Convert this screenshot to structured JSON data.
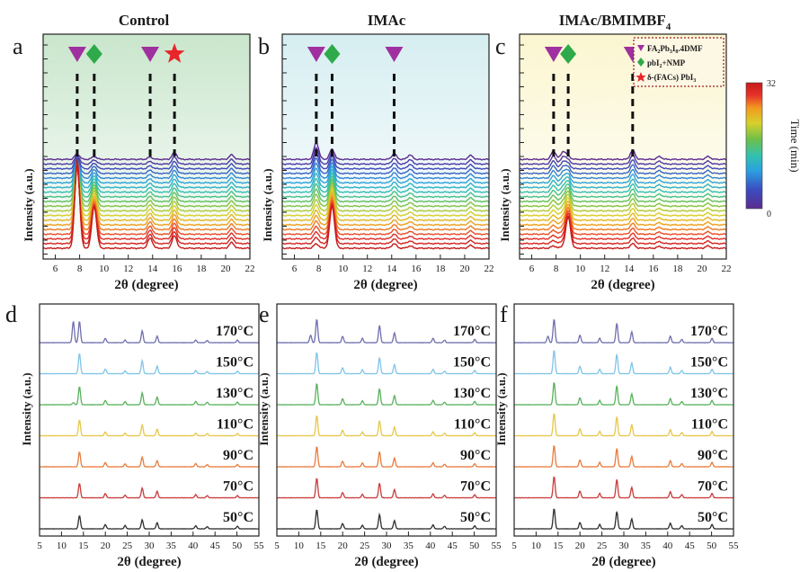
{
  "figure": {
    "colors": {
      "control_bg": "#d3ead6",
      "imac_bg": "#e2f1f3",
      "bmim_bg": "#fbf8dd",
      "triangle": "#a0309f",
      "diamond": "#2faa4a",
      "star": "#e8262a",
      "legend_border": "#9b1b1b",
      "colorbar": [
        "#5b2c8f",
        "#3b4cc0",
        "#2ba0e0",
        "#32c0b0",
        "#6cc04a",
        "#d8d02a",
        "#f29a20",
        "#e8322a",
        "#c51b1b"
      ],
      "temp_lines": [
        "#2e2e2e",
        "#c93a3a",
        "#e87b3b",
        "#e7c64a",
        "#58b25b",
        "#7fc4e8",
        "#6f6fae"
      ]
    },
    "colorbar": {
      "label": "Time (min)",
      "max_label": "32",
      "min_label": "0"
    },
    "legend": {
      "items": [
        {
          "icon": "triangle",
          "text": "FA2Pb3I8.4DMF"
        },
        {
          "icon": "diamond",
          "text": "pbI2+NMP"
        },
        {
          "icon": "star",
          "text": "δ-(FACs) PbI3"
        }
      ]
    },
    "temperature_labels": [
      "170°C",
      "150°C",
      "130°C",
      "110°C",
      "90°C",
      "70°C",
      "50°C"
    ]
  },
  "chart_data": [
    {
      "panel": "a",
      "type": "line",
      "title": "Control",
      "xlabel": "2θ (degree)",
      "ylabel": "Intensity (a.u.)",
      "xlim": [
        5,
        22
      ],
      "xticks": [
        6,
        8,
        10,
        12,
        14,
        16,
        18,
        20,
        22
      ],
      "series_count": 20,
      "series_variable": "time (min)",
      "time_range": [
        0,
        32
      ],
      "peaks": [
        {
          "x": 7.8,
          "height_first": 1.6,
          "height_last": 0.1,
          "marker": "triangle"
        },
        {
          "x": 9.2,
          "height_first": 0.75,
          "height_last": 0.05,
          "marker": "diamond"
        },
        {
          "x": 13.8,
          "height_first": 0.18,
          "height_last": 0.04,
          "marker": "triangle"
        },
        {
          "x": 15.8,
          "height_first": 0.22,
          "height_last": 0.12,
          "marker": "star"
        },
        {
          "x": 20.5,
          "height_first": 0.1,
          "height_last": 0.08,
          "marker": ""
        }
      ]
    },
    {
      "panel": "b",
      "type": "line",
      "title": "IMAc",
      "xlabel": "2θ (degree)",
      "ylabel": "Intensity (a.u.)",
      "xlim": [
        5,
        22
      ],
      "xticks": [
        6,
        8,
        10,
        12,
        14,
        16,
        18,
        20,
        22
      ],
      "series_count": 20,
      "series_variable": "time (min)",
      "time_range": [
        0,
        32
      ],
      "peaks": [
        {
          "x": 7.8,
          "height_first": 0.08,
          "height_last": 0.3,
          "marker": "triangle"
        },
        {
          "x": 9.1,
          "height_first": 0.75,
          "height_last": 0.18,
          "marker": "diamond"
        },
        {
          "x": 14.2,
          "height_first": 0.08,
          "height_last": 0.1,
          "marker": "triangle"
        },
        {
          "x": 15.5,
          "height_first": 0.04,
          "height_last": 0.08,
          "marker": ""
        },
        {
          "x": 20.5,
          "height_first": 0.05,
          "height_last": 0.07,
          "marker": ""
        }
      ]
    },
    {
      "panel": "c",
      "type": "line",
      "title": "IMAc/BMIMBF4",
      "xlabel": "2θ (degree)",
      "ylabel": "Intensity (a.u.)",
      "xlim": [
        5,
        22
      ],
      "xticks": [
        6,
        8,
        10,
        12,
        14,
        16,
        18,
        20,
        22
      ],
      "series_count": 20,
      "series_variable": "time (min)",
      "time_range": [
        0,
        32
      ],
      "peaks": [
        {
          "x": 7.8,
          "height_first": 0.04,
          "height_last": 0.15,
          "marker": "triangle"
        },
        {
          "x": 8.6,
          "height_first": 0.03,
          "height_last": 0.14,
          "marker": ""
        },
        {
          "x": 9.0,
          "height_first": 0.55,
          "height_last": 0.05,
          "marker": "diamond"
        },
        {
          "x": 14.3,
          "height_first": 0.08,
          "height_last": 0.16,
          "marker": "triangle"
        },
        {
          "x": 16.5,
          "height_first": 0.03,
          "height_last": 0.05,
          "marker": ""
        },
        {
          "x": 20.5,
          "height_first": 0.04,
          "height_last": 0.05,
          "marker": ""
        }
      ]
    },
    {
      "panel": "d",
      "type": "line",
      "title": "",
      "xlabel": "2θ (degree)",
      "ylabel": "Intensity (a.u.)",
      "xlim": [
        5,
        55
      ],
      "xticks": [
        5,
        10,
        15,
        20,
        25,
        30,
        35,
        40,
        45,
        50,
        55
      ],
      "series": [
        {
          "name": "170°C",
          "peaks": [
            [
              12.7,
              1.0
            ],
            [
              14.1,
              1.0
            ],
            [
              20.0,
              0.2
            ],
            [
              24.5,
              0.12
            ],
            [
              28.4,
              0.55
            ],
            [
              31.8,
              0.3
            ],
            [
              40.6,
              0.12
            ],
            [
              43.2,
              0.1
            ],
            [
              50.1,
              0.12
            ]
          ]
        },
        {
          "name": "150°C",
          "peaks": [
            [
              14.1,
              0.95
            ],
            [
              20.0,
              0.22
            ],
            [
              24.5,
              0.13
            ],
            [
              28.4,
              0.6
            ],
            [
              31.8,
              0.35
            ],
            [
              40.6,
              0.15
            ],
            [
              43.2,
              0.1
            ],
            [
              50.1,
              0.12
            ]
          ]
        },
        {
          "name": "130°C",
          "peaks": [
            [
              12.7,
              0.1
            ],
            [
              14.1,
              0.85
            ],
            [
              20.0,
              0.2
            ],
            [
              24.5,
              0.14
            ],
            [
              28.4,
              0.55
            ],
            [
              31.8,
              0.35
            ],
            [
              40.6,
              0.15
            ],
            [
              43.2,
              0.12
            ],
            [
              50.1,
              0.12
            ]
          ]
        },
        {
          "name": "110°C",
          "peaks": [
            [
              14.1,
              0.75
            ],
            [
              20.0,
              0.18
            ],
            [
              24.5,
              0.12
            ],
            [
              28.4,
              0.5
            ],
            [
              31.8,
              0.3
            ],
            [
              40.6,
              0.12
            ],
            [
              43.2,
              0.1
            ],
            [
              50.1,
              0.1
            ]
          ]
        },
        {
          "name": "90°C",
          "peaks": [
            [
              14.1,
              0.7
            ],
            [
              20.0,
              0.2
            ],
            [
              24.5,
              0.13
            ],
            [
              28.4,
              0.45
            ],
            [
              31.8,
              0.28
            ],
            [
              40.6,
              0.15
            ],
            [
              43.2,
              0.1
            ],
            [
              50.1,
              0.1
            ]
          ]
        },
        {
          "name": "70°C",
          "peaks": [
            [
              14.1,
              0.68
            ],
            [
              20.0,
              0.2
            ],
            [
              24.5,
              0.12
            ],
            [
              28.4,
              0.45
            ],
            [
              31.8,
              0.3
            ],
            [
              40.6,
              0.15
            ],
            [
              43.2,
              0.1
            ],
            [
              50.1,
              0.1
            ]
          ]
        },
        {
          "name": "50°C",
          "peaks": [
            [
              14.1,
              0.62
            ],
            [
              20.0,
              0.2
            ],
            [
              24.5,
              0.15
            ],
            [
              28.4,
              0.42
            ],
            [
              31.8,
              0.28
            ],
            [
              40.6,
              0.14
            ],
            [
              43.2,
              0.1
            ],
            [
              50.1,
              0.12
            ]
          ]
        }
      ]
    },
    {
      "panel": "e",
      "type": "line",
      "title": "",
      "xlabel": "2θ (degree)",
      "ylabel": "Intensity (a.u.)",
      "xlim": [
        5,
        55
      ],
      "xticks": [
        5,
        10,
        15,
        20,
        25,
        30,
        35,
        40,
        45,
        50,
        55
      ],
      "series": [
        {
          "name": "170°C",
          "peaks": [
            [
              12.7,
              0.35
            ],
            [
              14.1,
              1.1
            ],
            [
              20.0,
              0.3
            ],
            [
              24.5,
              0.2
            ],
            [
              28.4,
              0.8
            ],
            [
              31.8,
              0.45
            ],
            [
              40.6,
              0.2
            ],
            [
              43.2,
              0.12
            ],
            [
              50.1,
              0.15
            ]
          ]
        },
        {
          "name": "150°C",
          "peaks": [
            [
              14.1,
              1.0
            ],
            [
              20.0,
              0.28
            ],
            [
              24.5,
              0.18
            ],
            [
              28.4,
              0.75
            ],
            [
              31.8,
              0.42
            ],
            [
              40.6,
              0.2
            ],
            [
              43.2,
              0.12
            ],
            [
              50.1,
              0.15
            ]
          ]
        },
        {
          "name": "130°C",
          "peaks": [
            [
              14.1,
              1.0
            ],
            [
              20.0,
              0.28
            ],
            [
              24.5,
              0.18
            ],
            [
              28.4,
              0.75
            ],
            [
              31.8,
              0.42
            ],
            [
              40.6,
              0.2
            ],
            [
              43.2,
              0.12
            ],
            [
              50.1,
              0.15
            ]
          ]
        },
        {
          "name": "110°C",
          "peaks": [
            [
              14.1,
              0.95
            ],
            [
              20.0,
              0.26
            ],
            [
              24.5,
              0.17
            ],
            [
              28.4,
              0.7
            ],
            [
              31.8,
              0.4
            ],
            [
              40.6,
              0.18
            ],
            [
              43.2,
              0.12
            ],
            [
              50.1,
              0.14
            ]
          ]
        },
        {
          "name": "90°C",
          "peaks": [
            [
              14.1,
              0.95
            ],
            [
              20.0,
              0.26
            ],
            [
              24.5,
              0.17
            ],
            [
              28.4,
              0.7
            ],
            [
              31.8,
              0.4
            ],
            [
              40.6,
              0.18
            ],
            [
              43.2,
              0.12
            ],
            [
              50.1,
              0.14
            ]
          ]
        },
        {
          "name": "70°C",
          "peaks": [
            [
              14.1,
              0.92
            ],
            [
              20.0,
              0.25
            ],
            [
              24.5,
              0.16
            ],
            [
              28.4,
              0.68
            ],
            [
              31.8,
              0.38
            ],
            [
              40.6,
              0.18
            ],
            [
              43.2,
              0.12
            ],
            [
              50.1,
              0.14
            ]
          ]
        },
        {
          "name": "50°C",
          "peaks": [
            [
              14.1,
              0.9
            ],
            [
              20.0,
              0.25
            ],
            [
              24.5,
              0.16
            ],
            [
              28.4,
              0.66
            ],
            [
              31.8,
              0.38
            ],
            [
              40.6,
              0.18
            ],
            [
              43.2,
              0.12
            ],
            [
              50.1,
              0.14
            ]
          ]
        }
      ]
    },
    {
      "panel": "f",
      "type": "line",
      "title": "",
      "xlabel": "2θ (degree)",
      "ylabel": "Intensity (a.u.)",
      "xlim": [
        5,
        55
      ],
      "xticks": [
        5,
        10,
        15,
        20,
        25,
        30,
        35,
        40,
        45,
        50,
        55
      ],
      "series": [
        {
          "name": "170°C",
          "peaks": [
            [
              12.7,
              0.3
            ],
            [
              14.1,
              1.1
            ],
            [
              20.0,
              0.35
            ],
            [
              24.5,
              0.2
            ],
            [
              28.4,
              0.9
            ],
            [
              31.8,
              0.5
            ],
            [
              40.6,
              0.3
            ],
            [
              43.2,
              0.15
            ],
            [
              50.1,
              0.2
            ]
          ]
        },
        {
          "name": "150°C",
          "peaks": [
            [
              14.1,
              1.1
            ],
            [
              20.0,
              0.35
            ],
            [
              24.5,
              0.2
            ],
            [
              28.4,
              0.9
            ],
            [
              31.8,
              0.5
            ],
            [
              40.6,
              0.3
            ],
            [
              43.2,
              0.15
            ],
            [
              50.1,
              0.2
            ]
          ]
        },
        {
          "name": "130°C",
          "peaks": [
            [
              14.1,
              1.05
            ],
            [
              20.0,
              0.33
            ],
            [
              24.5,
              0.2
            ],
            [
              28.4,
              0.88
            ],
            [
              31.8,
              0.5
            ],
            [
              40.6,
              0.28
            ],
            [
              43.2,
              0.15
            ],
            [
              50.1,
              0.2
            ]
          ]
        },
        {
          "name": "110°C",
          "peaks": [
            [
              14.1,
              1.05
            ],
            [
              20.0,
              0.33
            ],
            [
              24.5,
              0.2
            ],
            [
              28.4,
              0.88
            ],
            [
              31.8,
              0.5
            ],
            [
              40.6,
              0.28
            ],
            [
              43.2,
              0.15
            ],
            [
              50.1,
              0.2
            ]
          ]
        },
        {
          "name": "90°C",
          "peaks": [
            [
              14.1,
              1.0
            ],
            [
              20.0,
              0.32
            ],
            [
              24.5,
              0.2
            ],
            [
              28.4,
              0.85
            ],
            [
              31.8,
              0.48
            ],
            [
              40.6,
              0.28
            ],
            [
              43.2,
              0.15
            ],
            [
              50.1,
              0.2
            ]
          ]
        },
        {
          "name": "70°C",
          "peaks": [
            [
              14.1,
              1.0
            ],
            [
              20.0,
              0.32
            ],
            [
              24.5,
              0.2
            ],
            [
              28.4,
              0.85
            ],
            [
              31.8,
              0.48
            ],
            [
              40.6,
              0.28
            ],
            [
              43.2,
              0.15
            ],
            [
              50.1,
              0.2
            ]
          ]
        },
        {
          "name": "50°C",
          "peaks": [
            [
              14.1,
              0.95
            ],
            [
              20.0,
              0.3
            ],
            [
              24.5,
              0.2
            ],
            [
              28.4,
              0.8
            ],
            [
              31.8,
              0.46
            ],
            [
              40.6,
              0.26
            ],
            [
              43.2,
              0.15
            ],
            [
              50.1,
              0.2
            ]
          ]
        }
      ]
    }
  ]
}
